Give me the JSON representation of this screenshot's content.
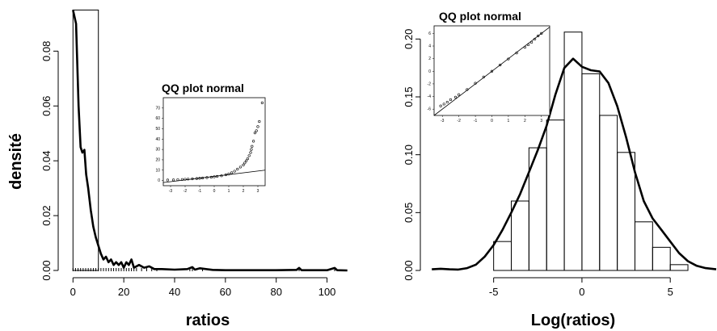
{
  "chart_data": [
    {
      "type": "histogram",
      "xlabel": "ratios",
      "ylabel": "densité",
      "xlim": [
        -2,
        110
      ],
      "ylim": [
        0,
        0.096
      ],
      "xticks": [
        "0",
        "20",
        "40",
        "60",
        "80",
        "100"
      ],
      "yticks": [
        "0.00",
        "0.02",
        "0.04",
        "0.06",
        "0.08"
      ],
      "bins": [
        {
          "x0": 0,
          "x1": 10,
          "density": 0.095
        }
      ],
      "density_curve": [
        [
          0,
          0.095
        ],
        [
          1.2,
          0.09
        ],
        [
          2.2,
          0.06
        ],
        [
          3,
          0.045
        ],
        [
          3.7,
          0.043
        ],
        [
          4.5,
          0.044
        ],
        [
          5.2,
          0.035
        ],
        [
          6,
          0.03
        ],
        [
          7,
          0.022
        ],
        [
          8,
          0.016
        ],
        [
          9,
          0.012
        ],
        [
          10,
          0.009
        ],
        [
          11,
          0.006
        ],
        [
          12,
          0.004
        ],
        [
          13,
          0.005
        ],
        [
          14,
          0.003
        ],
        [
          15,
          0.004
        ],
        [
          16,
          0.002
        ],
        [
          17,
          0.003
        ],
        [
          18,
          0.002
        ],
        [
          19,
          0.003
        ],
        [
          20,
          0.001
        ],
        [
          21,
          0.003
        ],
        [
          22,
          0.002
        ],
        [
          23,
          0.004
        ],
        [
          24,
          0.001
        ],
        [
          26,
          0.002
        ],
        [
          28,
          0.001
        ],
        [
          30,
          0.0015
        ],
        [
          32,
          0.0005
        ],
        [
          35,
          0.0005
        ],
        [
          40,
          0.0003
        ],
        [
          45,
          0.0005
        ],
        [
          47,
          0.0012
        ],
        [
          48,
          0.0003
        ],
        [
          50,
          0.0008
        ],
        [
          55,
          0.0002
        ],
        [
          60,
          0.0001
        ],
        [
          70,
          0.0001
        ],
        [
          80,
          0.0001
        ],
        [
          88,
          0.0002
        ],
        [
          89,
          0.0009
        ],
        [
          90,
          0.0001
        ],
        [
          100,
          0.0001
        ],
        [
          103,
          0.0009
        ],
        [
          104,
          0.0001
        ],
        [
          108,
          0
        ]
      ],
      "rug": [
        0,
        1,
        2,
        3,
        4,
        5,
        6,
        7,
        8,
        9,
        10,
        11,
        12,
        13,
        14,
        15,
        16,
        17,
        18,
        19,
        20,
        21,
        22,
        23,
        24,
        25,
        27,
        29,
        31,
        33,
        46,
        47,
        51,
        89,
        103
      ],
      "inset": {
        "title": "QQ plot normal",
        "xlim": [
          -3.5,
          3.5
        ],
        "ylim": [
          -5,
          80
        ],
        "xticks": [
          "-3",
          "-2",
          "-1",
          "0",
          "1",
          "2",
          "3"
        ],
        "yticks": [
          "0",
          "10",
          "20",
          "30",
          "40",
          "50",
          "60",
          "70"
        ],
        "points": [
          [
            -3.2,
            0.5
          ],
          [
            -2.8,
            0.6
          ],
          [
            -2.5,
            0.8
          ],
          [
            -2.2,
            1
          ],
          [
            -2,
            1.2
          ],
          [
            -1.8,
            1.4
          ],
          [
            -1.5,
            1.6
          ],
          [
            -1.2,
            1.9
          ],
          [
            -1,
            2.1
          ],
          [
            -0.8,
            2.4
          ],
          [
            -0.5,
            2.8
          ],
          [
            -0.2,
            3.2
          ],
          [
            0,
            3.6
          ],
          [
            0.2,
            4
          ],
          [
            0.5,
            4.6
          ],
          [
            0.8,
            5.5
          ],
          [
            1,
            6.3
          ],
          [
            1.2,
            7.5
          ],
          [
            1.4,
            9
          ],
          [
            1.6,
            11
          ],
          [
            1.8,
            13
          ],
          [
            2,
            15
          ],
          [
            2.1,
            17
          ],
          [
            2.2,
            19
          ],
          [
            2.3,
            21
          ],
          [
            2.4,
            24
          ],
          [
            2.5,
            27
          ],
          [
            2.55,
            30
          ],
          [
            2.6,
            33
          ],
          [
            2.7,
            38
          ],
          [
            2.8,
            46
          ],
          [
            2.9,
            48
          ],
          [
            3,
            52
          ],
          [
            3.1,
            57
          ],
          [
            3.3,
            75
          ]
        ],
        "ref_line": [
          [
            -3.5,
            -2
          ],
          [
            3.5,
            10
          ]
        ]
      }
    },
    {
      "type": "histogram",
      "xlabel": "Log(ratios)",
      "ylabel": "",
      "xlim": [
        -8.6,
        7.6
      ],
      "ylim": [
        0,
        0.21
      ],
      "xticks": [
        "-5",
        "0",
        "5"
      ],
      "yticks": [
        "0.00",
        "0.05",
        "0.10",
        "0.15",
        "0.20"
      ],
      "bins": [
        {
          "x0": -5,
          "x1": -4,
          "density": 0.025
        },
        {
          "x0": -4,
          "x1": -3,
          "density": 0.06
        },
        {
          "x0": -3,
          "x1": -2,
          "density": 0.106
        },
        {
          "x0": -2,
          "x1": -1,
          "density": 0.13
        },
        {
          "x0": -1,
          "x1": 0,
          "density": 0.206
        },
        {
          "x0": 0,
          "x1": 1,
          "density": 0.17
        },
        {
          "x0": 1,
          "x1": 2,
          "density": 0.134
        },
        {
          "x0": 2,
          "x1": 3,
          "density": 0.102
        },
        {
          "x0": 3,
          "x1": 4,
          "density": 0.042
        },
        {
          "x0": 4,
          "x1": 5,
          "density": 0.02
        },
        {
          "x0": 5,
          "x1": 6,
          "density": 0.005
        }
      ],
      "density_curve": [
        [
          -8.5,
          0.001
        ],
        [
          -8,
          0.0015
        ],
        [
          -7.5,
          0.001
        ],
        [
          -7,
          0.0008
        ],
        [
          -6.5,
          0.002
        ],
        [
          -6,
          0.005
        ],
        [
          -5.5,
          0.012
        ],
        [
          -5,
          0.022
        ],
        [
          -4.5,
          0.035
        ],
        [
          -4,
          0.05
        ],
        [
          -3.5,
          0.066
        ],
        [
          -3,
          0.085
        ],
        [
          -2.5,
          0.104
        ],
        [
          -2,
          0.125
        ],
        [
          -1.5,
          0.152
        ],
        [
          -1,
          0.175
        ],
        [
          -0.5,
          0.183
        ],
        [
          0,
          0.176
        ],
        [
          0.5,
          0.173
        ],
        [
          1,
          0.172
        ],
        [
          1.5,
          0.162
        ],
        [
          2,
          0.142
        ],
        [
          2.5,
          0.115
        ],
        [
          3,
          0.085
        ],
        [
          3.5,
          0.06
        ],
        [
          4,
          0.045
        ],
        [
          4.5,
          0.035
        ],
        [
          5,
          0.025
        ],
        [
          5.5,
          0.015
        ],
        [
          6,
          0.008
        ],
        [
          6.5,
          0.004
        ],
        [
          7,
          0.002
        ],
        [
          7.6,
          0.001
        ]
      ],
      "inset": {
        "title": "QQ plot normal",
        "xlim": [
          -3.5,
          3.5
        ],
        "ylim": [
          -7,
          7.2
        ],
        "xticks": [
          "-3",
          "-2",
          "-1",
          "0",
          "1",
          "2",
          "3"
        ],
        "yticks": [
          "-6",
          "-4",
          "-2",
          "0",
          "2",
          "4",
          "6"
        ],
        "points": [
          [
            -3.1,
            -5.5
          ],
          [
            -2.9,
            -5.2
          ],
          [
            -2.7,
            -4.9
          ],
          [
            -2.5,
            -4.5
          ],
          [
            -2.2,
            -4.1
          ],
          [
            -2,
            -3.7
          ],
          [
            -1.5,
            -2.9
          ],
          [
            -1,
            -1.9
          ],
          [
            -0.5,
            -0.9
          ],
          [
            0,
            0
          ],
          [
            0.5,
            1
          ],
          [
            1,
            1.95
          ],
          [
            1.5,
            2.9
          ],
          [
            2,
            3.8
          ],
          [
            2.2,
            4.2
          ],
          [
            2.4,
            4.6
          ],
          [
            2.6,
            5.1
          ],
          [
            2.8,
            5.6
          ],
          [
            3,
            6
          ]
        ],
        "ref_line": [
          [
            -3.5,
            -7
          ],
          [
            3.5,
            7
          ]
        ]
      }
    }
  ],
  "colors": {
    "ink": "#000000",
    "background": "#ffffff"
  }
}
